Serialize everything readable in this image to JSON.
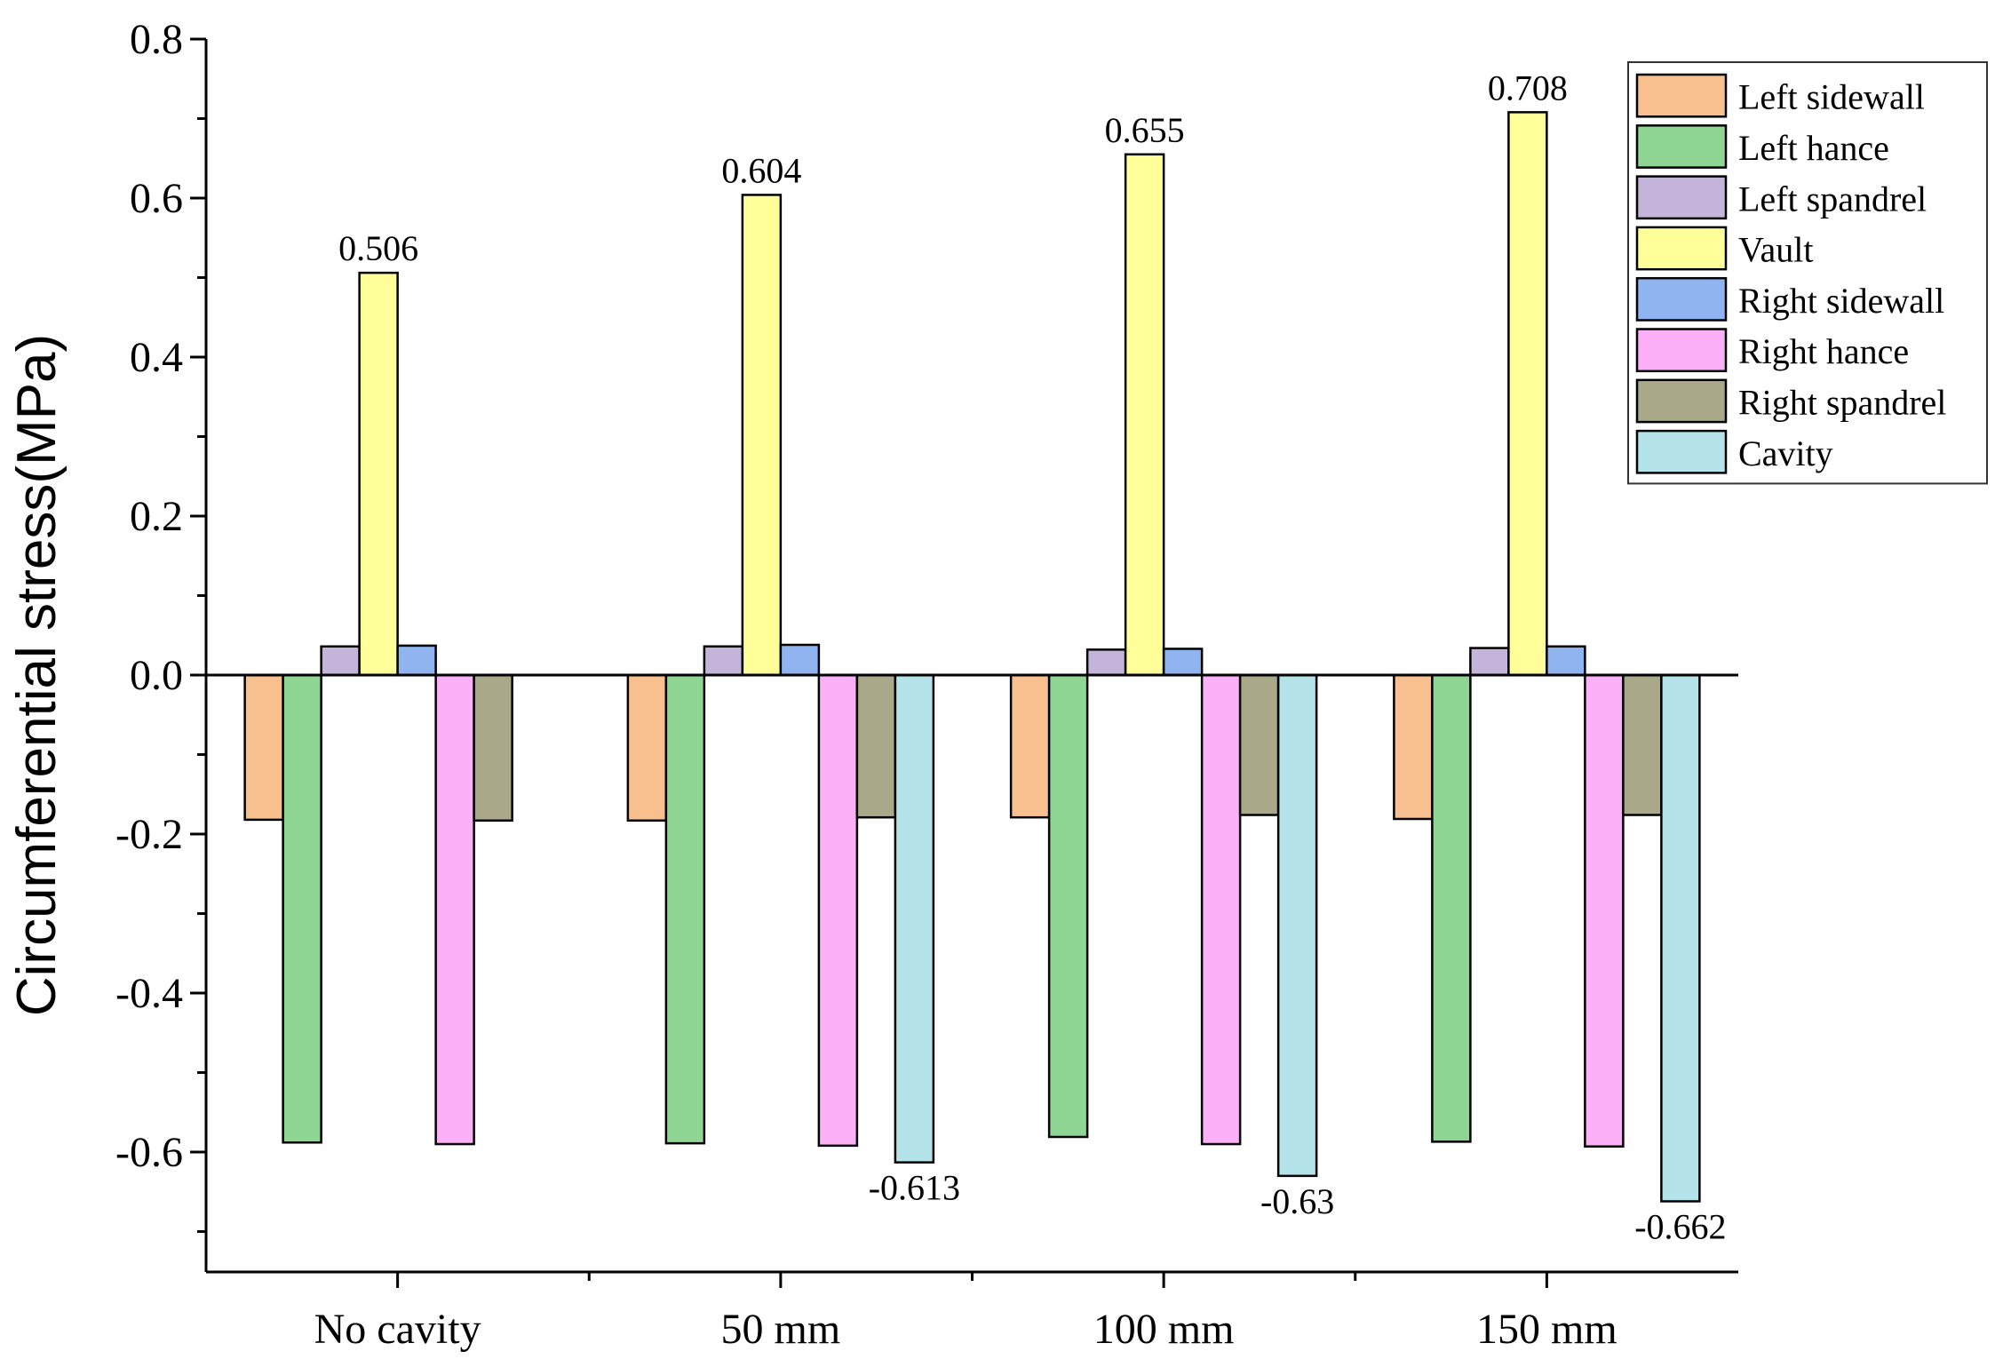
{
  "chart_data": {
    "type": "bar",
    "title": "",
    "xlabel": "",
    "ylabel": "Circumferential stress(MPa)",
    "ylim": [
      -0.7,
      0.8
    ],
    "yticks": [
      "0.8",
      "0.6",
      "0.4",
      "0.2",
      "0.0",
      "-0.2",
      "-0.4",
      "-0.6"
    ],
    "categories": [
      "No cavity",
      "50 mm",
      "100 mm",
      "150 mm"
    ],
    "legend_position": "top-right",
    "series": [
      {
        "name": "Left sidewall",
        "color": "#f9c08f",
        "values": [
          -0.182,
          -0.183,
          -0.179,
          -0.181
        ]
      },
      {
        "name": "Left hance",
        "color": "#8fd694",
        "values": [
          -0.588,
          -0.589,
          -0.581,
          -0.587
        ]
      },
      {
        "name": "Left spandrel",
        "color": "#c4b4d9",
        "values": [
          0.036,
          0.036,
          0.032,
          0.034
        ]
      },
      {
        "name": "Vault",
        "color": "#ffff99",
        "values": [
          0.506,
          0.604,
          0.655,
          0.708
        ]
      },
      {
        "name": "Right sidewall",
        "color": "#8fb4f0",
        "values": [
          0.037,
          0.038,
          0.033,
          0.036
        ]
      },
      {
        "name": "Right hance",
        "color": "#fbb0f7",
        "values": [
          -0.59,
          -0.592,
          -0.59,
          -0.593
        ]
      },
      {
        "name": "Right spandrel",
        "color": "#a9a98a",
        "values": [
          -0.183,
          -0.179,
          -0.176,
          -0.176
        ]
      },
      {
        "name": "Cavity",
        "color": "#b4e3ea",
        "values": [
          null,
          -0.613,
          -0.63,
          -0.662
        ]
      }
    ],
    "data_labels": [
      {
        "series": "Vault",
        "category": "No cavity",
        "text": "0.506"
      },
      {
        "series": "Vault",
        "category": "50 mm",
        "text": "0.604"
      },
      {
        "series": "Vault",
        "category": "100 mm",
        "text": "0.655"
      },
      {
        "series": "Vault",
        "category": "150 mm",
        "text": "0.708"
      },
      {
        "series": "Cavity",
        "category": "50 mm",
        "text": "-0.613"
      },
      {
        "series": "Cavity",
        "category": "100 mm",
        "text": "-0.63"
      },
      {
        "series": "Cavity",
        "category": "150 mm",
        "text": "-0.662"
      }
    ]
  }
}
